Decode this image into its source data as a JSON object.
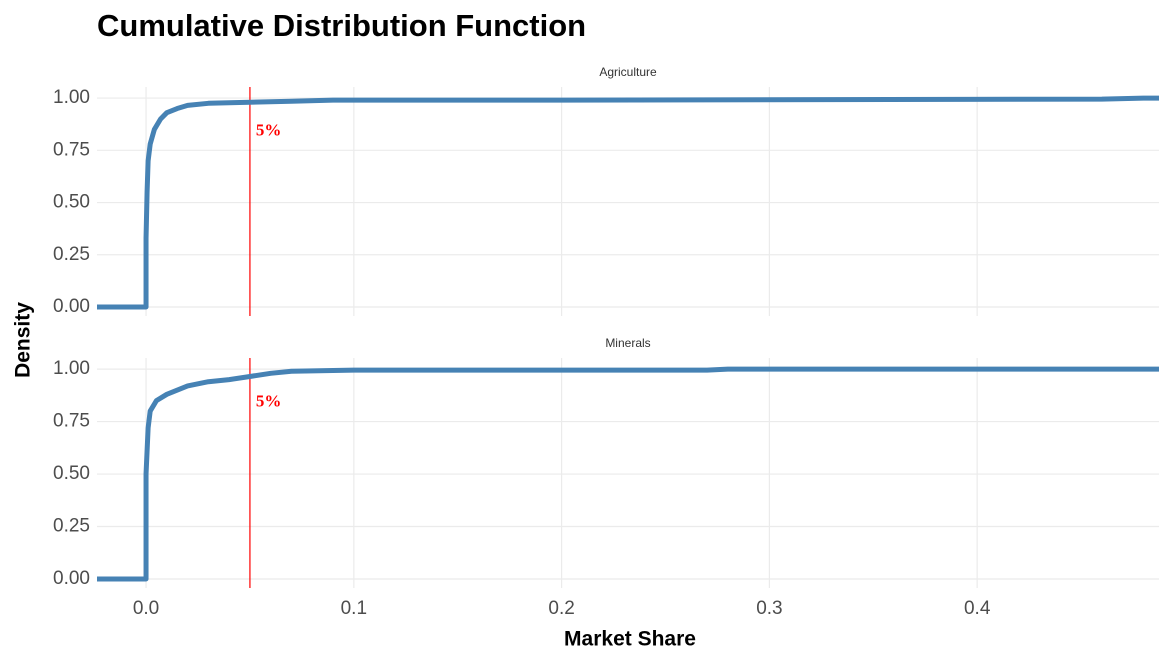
{
  "chart_data": {
    "type": "line",
    "title": "Cumulative Distribution Function",
    "xlabel": "Market Share",
    "ylabel": "Density",
    "xlim": [
      -0.0236,
      0.4875
    ],
    "xticks": [
      {
        "value": 0,
        "label": "0.0"
      },
      0.1,
      0.2,
      0.3,
      0.4
    ],
    "ylim": [
      -0.043,
      1.053
    ],
    "yticks": [
      {
        "value": 0,
        "label": "0.00"
      },
      {
        "value": 0.25,
        "label": "0.25"
      },
      {
        "value": 0.5,
        "label": "0.50"
      },
      {
        "value": 0.75,
        "label": "0.75"
      },
      {
        "value": 1,
        "label": "1.00"
      }
    ],
    "grid": true,
    "panels": [
      {
        "title": "Agriculture",
        "series": [
          {
            "color": "#4682b4",
            "x": [
              -0.0236,
              0,
              0,
              0.0005,
              0.001,
              0.002,
              0.004,
              0.007,
              0.01,
              0.015,
              0.02,
              0.03,
              0.05,
              0.07,
              0.09,
              0.2,
              0.46,
              0.48,
              0.4875
            ],
            "values": [
              0,
              0,
              0.33,
              0.55,
              0.7,
              0.78,
              0.85,
              0.9,
              0.93,
              0.95,
              0.965,
              0.975,
              0.98,
              0.985,
              0.99,
              0.99,
              0.995,
              1,
              1
            ]
          }
        ],
        "annotation": {
          "x": 0.05,
          "y": 0.84,
          "label": "5%",
          "color": "#ff0000"
        }
      },
      {
        "title": "Minerals",
        "series": [
          {
            "color": "#4682b4",
            "x": [
              -0.0236,
              0,
              0,
              0.001,
              0.002,
              0.005,
              0.01,
              0.02,
              0.03,
              0.04,
              0.05,
              0.06,
              0.07,
              0.1,
              0.27,
              0.28,
              0.4875
            ],
            "values": [
              0,
              0,
              0.5,
              0.72,
              0.8,
              0.85,
              0.88,
              0.92,
              0.94,
              0.95,
              0.965,
              0.98,
              0.99,
              0.995,
              0.995,
              1,
              1
            ]
          }
        ],
        "annotation": {
          "x": 0.05,
          "y": 0.84,
          "label": "5%",
          "color": "#ff0000"
        }
      }
    ]
  }
}
